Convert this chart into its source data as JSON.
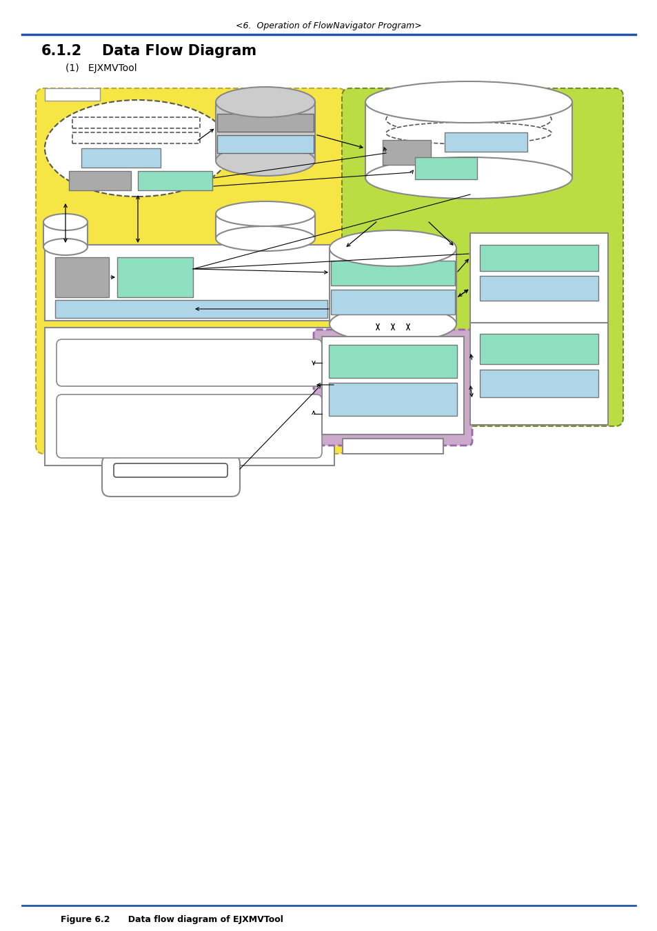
{
  "title_header": "<6.  Operation of FlowNavigator Program>",
  "section_title_num": "6.1.2",
  "section_title_text": "Data Flow Diagram",
  "subsection": "(1)   EJXMVTool",
  "figure_caption": "Figure 6.2      Data flow diagram of EJXMVTool",
  "colors": {
    "yellow_bg": "#F5E545",
    "green_bg": "#BBDD44",
    "purple_bg": "#CCAACC",
    "light_blue": "#AED6E8",
    "light_green": "#8EE0C0",
    "gray_box": "#AAAAAA",
    "gray_dark": "#999999",
    "white": "#FFFFFF",
    "black": "#000000",
    "header_line": "#2255AA",
    "footer_line": "#2255AA",
    "border_gray": "#888888",
    "yellow_edge": "#BBAA00",
    "green_edge": "#778800"
  }
}
